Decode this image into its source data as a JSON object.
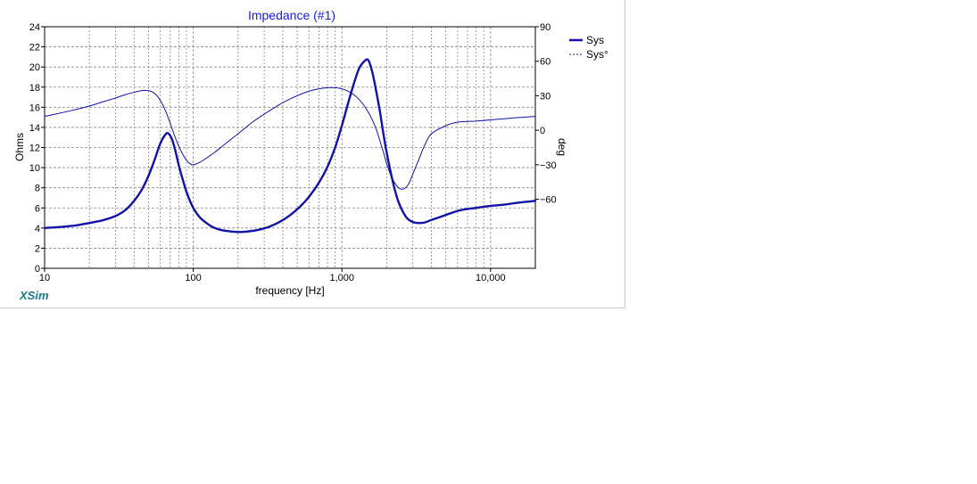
{
  "app": {
    "brand": "XSim"
  },
  "chart_data": {
    "type": "line",
    "title": "Impedance (#1)",
    "xlabel": "frequency [Hz]",
    "ylabel": "Ohms",
    "y2label": "deg",
    "xscale": "log",
    "xlim": [
      10,
      20000
    ],
    "ylim": [
      0,
      24
    ],
    "y2lim": [
      -120,
      90
    ],
    "x_ticks": [
      10,
      100,
      1000,
      10000
    ],
    "x_tick_labels": [
      "10",
      "100",
      "1,000",
      "10,000"
    ],
    "y_ticks": [
      0,
      2,
      4,
      6,
      8,
      10,
      12,
      14,
      16,
      18,
      20,
      22,
      24
    ],
    "y_tick_labels": [
      "0",
      "2",
      "4",
      "6",
      "8",
      "10",
      "12",
      "14",
      "16",
      "18",
      "20",
      "22",
      "24"
    ],
    "y2_ticks": [
      -60,
      -30,
      0,
      30,
      60,
      90
    ],
    "y2_tick_labels": [
      "−60",
      "−30",
      "0",
      "30",
      "60",
      "90"
    ],
    "grid": true,
    "legend_position": "top-right",
    "series": [
      {
        "name": "Sys",
        "axis": "left",
        "style": "solid",
        "x": [
          10,
          15,
          20,
          25,
          30,
          35,
          40,
          45,
          50,
          55,
          60,
          65,
          68,
          72,
          76,
          80,
          85,
          90,
          95,
          100,
          110,
          120,
          135,
          150,
          170,
          200,
          230,
          270,
          320,
          380,
          450,
          520,
          600,
          700,
          800,
          900,
          1000,
          1100,
          1200,
          1300,
          1400,
          1500,
          1600,
          1700,
          1800,
          1900,
          2000,
          2200,
          2400,
          2700,
          3000,
          3300,
          3600,
          4000,
          5000,
          6000,
          7000,
          8000,
          10000,
          12000,
          15000,
          20000
        ],
        "values": [
          4.0,
          4.2,
          4.5,
          4.8,
          5.2,
          5.8,
          6.7,
          7.8,
          9.2,
          10.8,
          12.4,
          13.3,
          13.4,
          12.8,
          11.6,
          10.2,
          8.8,
          7.6,
          6.7,
          6.0,
          5.1,
          4.6,
          4.1,
          3.85,
          3.7,
          3.6,
          3.65,
          3.8,
          4.1,
          4.6,
          5.3,
          6.1,
          7.1,
          8.5,
          10.1,
          12.0,
          14.2,
          16.4,
          18.3,
          19.8,
          20.5,
          20.7,
          19.5,
          17.6,
          15.6,
          13.4,
          11.5,
          8.6,
          6.6,
          5.1,
          4.6,
          4.5,
          4.55,
          4.8,
          5.3,
          5.7,
          5.9,
          6.0,
          6.2,
          6.3,
          6.5,
          6.7
        ]
      },
      {
        "name": "Sys°",
        "axis": "right",
        "style": "dashed",
        "x": [
          10,
          15,
          20,
          25,
          30,
          35,
          40,
          45,
          50,
          55,
          60,
          65,
          70,
          75,
          80,
          85,
          90,
          95,
          100,
          110,
          120,
          140,
          160,
          200,
          250,
          300,
          400,
          500,
          600,
          700,
          800,
          900,
          1000,
          1100,
          1200,
          1300,
          1400,
          1500,
          1600,
          1700,
          1800,
          1900,
          2000,
          2100,
          2200,
          2400,
          2600,
          2800,
          3000,
          3300,
          3600,
          4000,
          5000,
          6000,
          8000,
          10000,
          15000,
          20000
        ],
        "values": [
          12,
          17,
          21,
          25,
          28,
          31,
          33,
          34.5,
          34.5,
          32,
          26,
          17,
          6,
          -5,
          -14,
          -21,
          -26,
          -29,
          -30,
          -28,
          -25,
          -19,
          -13,
          -3,
          7,
          14,
          24,
          30,
          34,
          36,
          37,
          37,
          36,
          34,
          31,
          27,
          22,
          16,
          9,
          1,
          -9,
          -19,
          -29,
          -37,
          -43,
          -50,
          -51,
          -47,
          -38,
          -25,
          -13,
          -3,
          4,
          7,
          8,
          9,
          11,
          12
        ]
      }
    ]
  },
  "colors": {
    "series": "#1212a8",
    "grid": "#8a8a8a",
    "title": "#1a1adc",
    "brand": "#1a7a8a"
  }
}
